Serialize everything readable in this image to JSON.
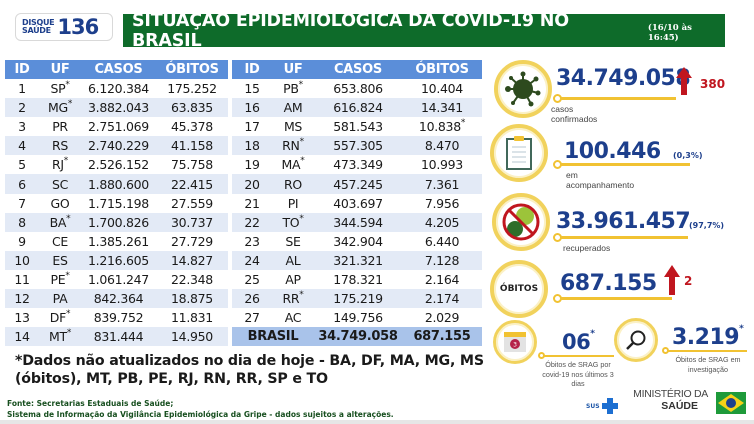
{
  "logo": {
    "line1": "DISQUE",
    "line2": "SAÚDE",
    "number": "136"
  },
  "header": {
    "title": "SITUAÇÃO EPIDEMIOLÓGICA DA COVID-19 NO BRASIL",
    "date": "(16/10 às 16:45)"
  },
  "table": {
    "columns": [
      "ID",
      "UF",
      "CASOS",
      "ÓBITOS"
    ],
    "left_rows": [
      {
        "id": "1",
        "uf": "SP",
        "uf_mark": "*",
        "casos": "6.120.384",
        "obitos": "175.252",
        "obitos_mark": ""
      },
      {
        "id": "2",
        "uf": "MG",
        "uf_mark": "*",
        "casos": "3.882.043",
        "obitos": "63.835",
        "obitos_mark": ""
      },
      {
        "id": "3",
        "uf": "PR",
        "uf_mark": "",
        "casos": "2.751.069",
        "obitos": "45.378",
        "obitos_mark": ""
      },
      {
        "id": "4",
        "uf": "RS",
        "uf_mark": "",
        "casos": "2.740.229",
        "obitos": "41.158",
        "obitos_mark": ""
      },
      {
        "id": "5",
        "uf": "RJ",
        "uf_mark": "*",
        "casos": "2.526.152",
        "obitos": "75.758",
        "obitos_mark": ""
      },
      {
        "id": "6",
        "uf": "SC",
        "uf_mark": "",
        "casos": "1.880.600",
        "obitos": "22.415",
        "obitos_mark": ""
      },
      {
        "id": "7",
        "uf": "GO",
        "uf_mark": "",
        "casos": "1.715.198",
        "obitos": "27.559",
        "obitos_mark": ""
      },
      {
        "id": "8",
        "uf": "BA",
        "uf_mark": "*",
        "casos": "1.700.826",
        "obitos": "30.737",
        "obitos_mark": ""
      },
      {
        "id": "9",
        "uf": "CE",
        "uf_mark": "",
        "casos": "1.385.261",
        "obitos": "27.729",
        "obitos_mark": ""
      },
      {
        "id": "10",
        "uf": "ES",
        "uf_mark": "",
        "casos": "1.216.605",
        "obitos": "14.827",
        "obitos_mark": ""
      },
      {
        "id": "11",
        "uf": "PE",
        "uf_mark": "*",
        "casos": "1.061.247",
        "obitos": "22.348",
        "obitos_mark": ""
      },
      {
        "id": "12",
        "uf": "PA",
        "uf_mark": "",
        "casos": "842.364",
        "obitos": "18.875",
        "obitos_mark": ""
      },
      {
        "id": "13",
        "uf": "DF",
        "uf_mark": "*",
        "casos": "839.752",
        "obitos": "11.831",
        "obitos_mark": ""
      },
      {
        "id": "14",
        "uf": "MT",
        "uf_mark": "*",
        "casos": "831.444",
        "obitos": "14.950",
        "obitos_mark": ""
      }
    ],
    "right_rows": [
      {
        "id": "15",
        "uf": "PB",
        "uf_mark": "*",
        "casos": "653.806",
        "obitos": "10.404",
        "obitos_mark": ""
      },
      {
        "id": "16",
        "uf": "AM",
        "uf_mark": "",
        "casos": "616.824",
        "obitos": "14.341",
        "obitos_mark": ""
      },
      {
        "id": "17",
        "uf": "MS",
        "uf_mark": "",
        "casos": "581.543",
        "obitos": "10.838",
        "obitos_mark": "*"
      },
      {
        "id": "18",
        "uf": "RN",
        "uf_mark": "*",
        "casos": "557.305",
        "obitos": "8.470",
        "obitos_mark": ""
      },
      {
        "id": "19",
        "uf": "MA",
        "uf_mark": "*",
        "casos": "473.349",
        "obitos": "10.993",
        "obitos_mark": ""
      },
      {
        "id": "20",
        "uf": "RO",
        "uf_mark": "",
        "casos": "457.245",
        "obitos": "7.361",
        "obitos_mark": ""
      },
      {
        "id": "21",
        "uf": "PI",
        "uf_mark": "",
        "casos": "403.697",
        "obitos": "7.956",
        "obitos_mark": ""
      },
      {
        "id": "22",
        "uf": "TO",
        "uf_mark": "*",
        "casos": "344.594",
        "obitos": "4.205",
        "obitos_mark": ""
      },
      {
        "id": "23",
        "uf": "SE",
        "uf_mark": "",
        "casos": "342.904",
        "obitos": "6.440",
        "obitos_mark": ""
      },
      {
        "id": "24",
        "uf": "AL",
        "uf_mark": "",
        "casos": "321.321",
        "obitos": "7.128",
        "obitos_mark": ""
      },
      {
        "id": "25",
        "uf": "AP",
        "uf_mark": "",
        "casos": "178.321",
        "obitos": "2.164",
        "obitos_mark": ""
      },
      {
        "id": "26",
        "uf": "RR",
        "uf_mark": "*",
        "casos": "175.219",
        "obitos": "2.174",
        "obitos_mark": ""
      },
      {
        "id": "27",
        "uf": "AC",
        "uf_mark": "",
        "casos": "149.756",
        "obitos": "2.029",
        "obitos_mark": ""
      }
    ],
    "total": {
      "label": "BRASIL",
      "casos": "34.749.058",
      "obitos": "687.155"
    }
  },
  "note": "*Dados não atualizados no dia de hoje - BA, DF, MA, MG, MS (óbitos), MT, PB, PE, RJ, RN, RR, SP e TO",
  "source": {
    "line1": "Fonte: Secretarias Estaduais de Saúde;",
    "line2": "Sistema de Informação da Vigilância Epidemiológica da Gripe - dados sujeitos a alterações."
  },
  "stats": {
    "confirmed": {
      "value": "34.749.058",
      "delta": "380",
      "label": "casos confirmados",
      "icon": "virus-icon"
    },
    "monitoring": {
      "value": "100.446",
      "pct": "(0,3%)",
      "label": "em acompanhamento",
      "icon": "clipboard-icon"
    },
    "recovered": {
      "value": "33.961.457",
      "pct": "(97,7%)",
      "label": "recuperados",
      "icon": "no-virus-icon"
    },
    "deaths": {
      "badge": "ÓBITOS",
      "value": "687.155",
      "delta": "2"
    },
    "srag_recent": {
      "value": "06",
      "mark": "*",
      "label": "Óbitos de SRAG por covid-19 nos últimos 3 dias",
      "calendar_day": "3",
      "icon": "calendar-icon"
    },
    "srag_investigation": {
      "value": "3.219",
      "mark": "*",
      "label": "Óbitos de SRAG em investigação",
      "icon": "magnifier-icon"
    }
  },
  "footer": {
    "sus": "SUS",
    "ministry_line1": "MINISTÉRIO DA",
    "ministry_line2": "SAÚDE"
  },
  "colors": {
    "header_green": "#0e6b2a",
    "table_header_blue": "#5b8ed9",
    "row_stripe": "#e3eaf6",
    "total_row": "#a9c3ea",
    "stat_blue": "#1d3f8c",
    "ring_yellow": "#f1d25c",
    "delta_red": "#c0161f"
  }
}
